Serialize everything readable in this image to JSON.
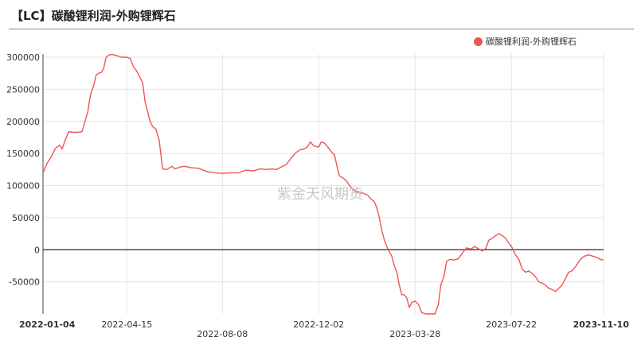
{
  "chart_data": {
    "type": "line",
    "title": "【LC】碳酸锂利润-外购锂辉石",
    "watermark": "紫金天风期货",
    "legend_position": "top-right",
    "grid": true,
    "ylim": [
      -100000,
      305000
    ],
    "yticks": [
      300000,
      250000,
      200000,
      150000,
      100000,
      50000,
      0,
      -50000
    ],
    "ytick_labels": [
      "300000",
      "250000",
      "200000",
      "150000",
      "100000",
      "50000",
      "0",
      "-50000"
    ],
    "xlim": [
      "2022-01-04",
      "2023-11-10"
    ],
    "xticks": [
      {
        "date": "2022-01-04",
        "label": "2022-01-04",
        "row": 0,
        "bold": true,
        "anchor": "start"
      },
      {
        "date": "2022-04-15",
        "label": "2022-04-15",
        "row": 0,
        "bold": false,
        "anchor": "middle"
      },
      {
        "date": "2022-08-08",
        "label": "2022-08-08",
        "row": 1,
        "bold": false,
        "anchor": "middle"
      },
      {
        "date": "2022-12-02",
        "label": "2022-12-02",
        "row": 0,
        "bold": false,
        "anchor": "middle"
      },
      {
        "date": "2023-03-28",
        "label": "2023-03-28",
        "row": 1,
        "bold": false,
        "anchor": "middle"
      },
      {
        "date": "2023-07-22",
        "label": "2023-07-22",
        "row": 0,
        "bold": false,
        "anchor": "middle"
      },
      {
        "date": "2023-11-10",
        "label": "2023-11-10",
        "row": 0,
        "bold": true,
        "anchor": "end"
      }
    ],
    "colors": {
      "series": "#ee5555",
      "zero_line": "#222222",
      "grid": "#e6e6e6",
      "axis": "#444444"
    },
    "series": [
      {
        "name": "碳酸锂利润-外购锂辉石",
        "points": [
          [
            "2022-01-04",
            120000
          ],
          [
            "2022-01-09",
            135000
          ],
          [
            "2022-01-14",
            145000
          ],
          [
            "2022-01-19",
            158000
          ],
          [
            "2022-01-24",
            163000
          ],
          [
            "2022-01-27",
            157000
          ],
          [
            "2022-01-31",
            172000
          ],
          [
            "2022-02-04",
            184000
          ],
          [
            "2022-02-09",
            183000
          ],
          [
            "2022-02-15",
            183000
          ],
          [
            "2022-02-20",
            184000
          ],
          [
            "2022-02-24",
            202000
          ],
          [
            "2022-02-27",
            215000
          ],
          [
            "2022-03-02",
            240000
          ],
          [
            "2022-03-06",
            256000
          ],
          [
            "2022-03-09",
            272000
          ],
          [
            "2022-03-12",
            275000
          ],
          [
            "2022-03-15",
            276000
          ],
          [
            "2022-03-18",
            282000
          ],
          [
            "2022-03-21",
            300000
          ],
          [
            "2022-03-25",
            304000
          ],
          [
            "2022-03-30",
            304000
          ],
          [
            "2022-04-04",
            302000
          ],
          [
            "2022-04-09",
            300000
          ],
          [
            "2022-04-15",
            300000
          ],
          [
            "2022-04-19",
            298000
          ],
          [
            "2022-04-23",
            285000
          ],
          [
            "2022-04-27",
            278000
          ],
          [
            "2022-05-01",
            268000
          ],
          [
            "2022-05-04",
            260000
          ],
          [
            "2022-05-07",
            230000
          ],
          [
            "2022-05-10",
            215000
          ],
          [
            "2022-05-13",
            200000
          ],
          [
            "2022-05-16",
            192000
          ],
          [
            "2022-05-20",
            188000
          ],
          [
            "2022-05-24",
            170000
          ],
          [
            "2022-05-28",
            126000
          ],
          [
            "2022-06-02",
            125000
          ],
          [
            "2022-06-08",
            130000
          ],
          [
            "2022-06-12",
            126000
          ],
          [
            "2022-06-18",
            129000
          ],
          [
            "2022-06-24",
            130000
          ],
          [
            "2022-07-01",
            128000
          ],
          [
            "2022-07-10",
            127000
          ],
          [
            "2022-07-20",
            122000
          ],
          [
            "2022-07-30",
            120000
          ],
          [
            "2022-08-08",
            119000
          ],
          [
            "2022-08-18",
            120000
          ],
          [
            "2022-08-28",
            120000
          ],
          [
            "2022-09-05",
            124000
          ],
          [
            "2022-09-15",
            123000
          ],
          [
            "2022-09-22",
            126000
          ],
          [
            "2022-09-30",
            125000
          ],
          [
            "2022-10-06",
            126000
          ],
          [
            "2022-10-12",
            125000
          ],
          [
            "2022-10-18",
            129000
          ],
          [
            "2022-10-24",
            133000
          ],
          [
            "2022-10-30",
            143000
          ],
          [
            "2022-11-04",
            151000
          ],
          [
            "2022-11-10",
            156000
          ],
          [
            "2022-11-14",
            157000
          ],
          [
            "2022-11-18",
            160000
          ],
          [
            "2022-11-22",
            168000
          ],
          [
            "2022-11-26",
            162000
          ],
          [
            "2022-12-02",
            160000
          ],
          [
            "2022-12-05",
            168000
          ],
          [
            "2022-12-09",
            166000
          ],
          [
            "2022-12-13",
            160000
          ],
          [
            "2022-12-17",
            153000
          ],
          [
            "2022-12-21",
            148000
          ],
          [
            "2022-12-24",
            130000
          ],
          [
            "2022-12-27",
            115000
          ],
          [
            "2022-12-31",
            112000
          ],
          [
            "2023-01-04",
            108000
          ],
          [
            "2023-01-08",
            100000
          ],
          [
            "2023-01-12",
            95000
          ],
          [
            "2023-01-16",
            90000
          ],
          [
            "2023-01-20",
            89000
          ],
          [
            "2023-01-25",
            88000
          ],
          [
            "2023-01-30",
            85000
          ],
          [
            "2023-02-03",
            79000
          ],
          [
            "2023-02-07",
            75000
          ],
          [
            "2023-02-10",
            65000
          ],
          [
            "2023-02-13",
            50000
          ],
          [
            "2023-02-16",
            30000
          ],
          [
            "2023-02-19",
            15000
          ],
          [
            "2023-02-22",
            5000
          ],
          [
            "2023-02-25",
            -3000
          ],
          [
            "2023-02-28",
            -10000
          ],
          [
            "2023-03-03",
            -25000
          ],
          [
            "2023-03-06",
            -35000
          ],
          [
            "2023-03-09",
            -55000
          ],
          [
            "2023-03-12",
            -70000
          ],
          [
            "2023-03-15",
            -70000
          ],
          [
            "2023-03-18",
            -75000
          ],
          [
            "2023-03-21",
            -90000
          ],
          [
            "2023-03-24",
            -82000
          ],
          [
            "2023-03-28",
            -80000
          ],
          [
            "2023-04-01",
            -85000
          ],
          [
            "2023-04-05",
            -98000
          ],
          [
            "2023-04-10",
            -100000
          ],
          [
            "2023-04-16",
            -100000
          ],
          [
            "2023-04-21",
            -100000
          ],
          [
            "2023-04-25",
            -85000
          ],
          [
            "2023-04-28",
            -55000
          ],
          [
            "2023-05-02",
            -40000
          ],
          [
            "2023-05-05",
            -18000
          ],
          [
            "2023-05-09",
            -15000
          ],
          [
            "2023-05-14",
            -16000
          ],
          [
            "2023-05-19",
            -14000
          ],
          [
            "2023-05-24",
            -5000
          ],
          [
            "2023-05-29",
            3000
          ],
          [
            "2023-06-03",
            1000
          ],
          [
            "2023-06-08",
            5000
          ],
          [
            "2023-06-13",
            1000
          ],
          [
            "2023-06-17",
            -2000
          ],
          [
            "2023-06-21",
            2000
          ],
          [
            "2023-06-25",
            15000
          ],
          [
            "2023-06-29",
            18000
          ],
          [
            "2023-07-03",
            22000
          ],
          [
            "2023-07-07",
            25000
          ],
          [
            "2023-07-11",
            22000
          ],
          [
            "2023-07-15",
            18000
          ],
          [
            "2023-07-19",
            10000
          ],
          [
            "2023-07-23",
            3000
          ],
          [
            "2023-07-27",
            -8000
          ],
          [
            "2023-07-31",
            -15000
          ],
          [
            "2023-08-04",
            -30000
          ],
          [
            "2023-08-08",
            -35000
          ],
          [
            "2023-08-12",
            -33000
          ],
          [
            "2023-08-16",
            -37000
          ],
          [
            "2023-08-20",
            -42000
          ],
          [
            "2023-08-24",
            -50000
          ],
          [
            "2023-08-28",
            -52000
          ],
          [
            "2023-09-01",
            -55000
          ],
          [
            "2023-09-05",
            -60000
          ],
          [
            "2023-09-09",
            -62000
          ],
          [
            "2023-09-13",
            -65000
          ],
          [
            "2023-09-17",
            -60000
          ],
          [
            "2023-09-21",
            -55000
          ],
          [
            "2023-09-25",
            -45000
          ],
          [
            "2023-09-29",
            -35000
          ],
          [
            "2023-10-03",
            -33000
          ],
          [
            "2023-10-08",
            -25000
          ],
          [
            "2023-10-13",
            -15000
          ],
          [
            "2023-10-18",
            -10000
          ],
          [
            "2023-10-23",
            -8000
          ],
          [
            "2023-10-28",
            -10000
          ],
          [
            "2023-11-02",
            -12000
          ],
          [
            "2023-11-06",
            -15000
          ],
          [
            "2023-11-10",
            -16000
          ]
        ]
      }
    ]
  }
}
